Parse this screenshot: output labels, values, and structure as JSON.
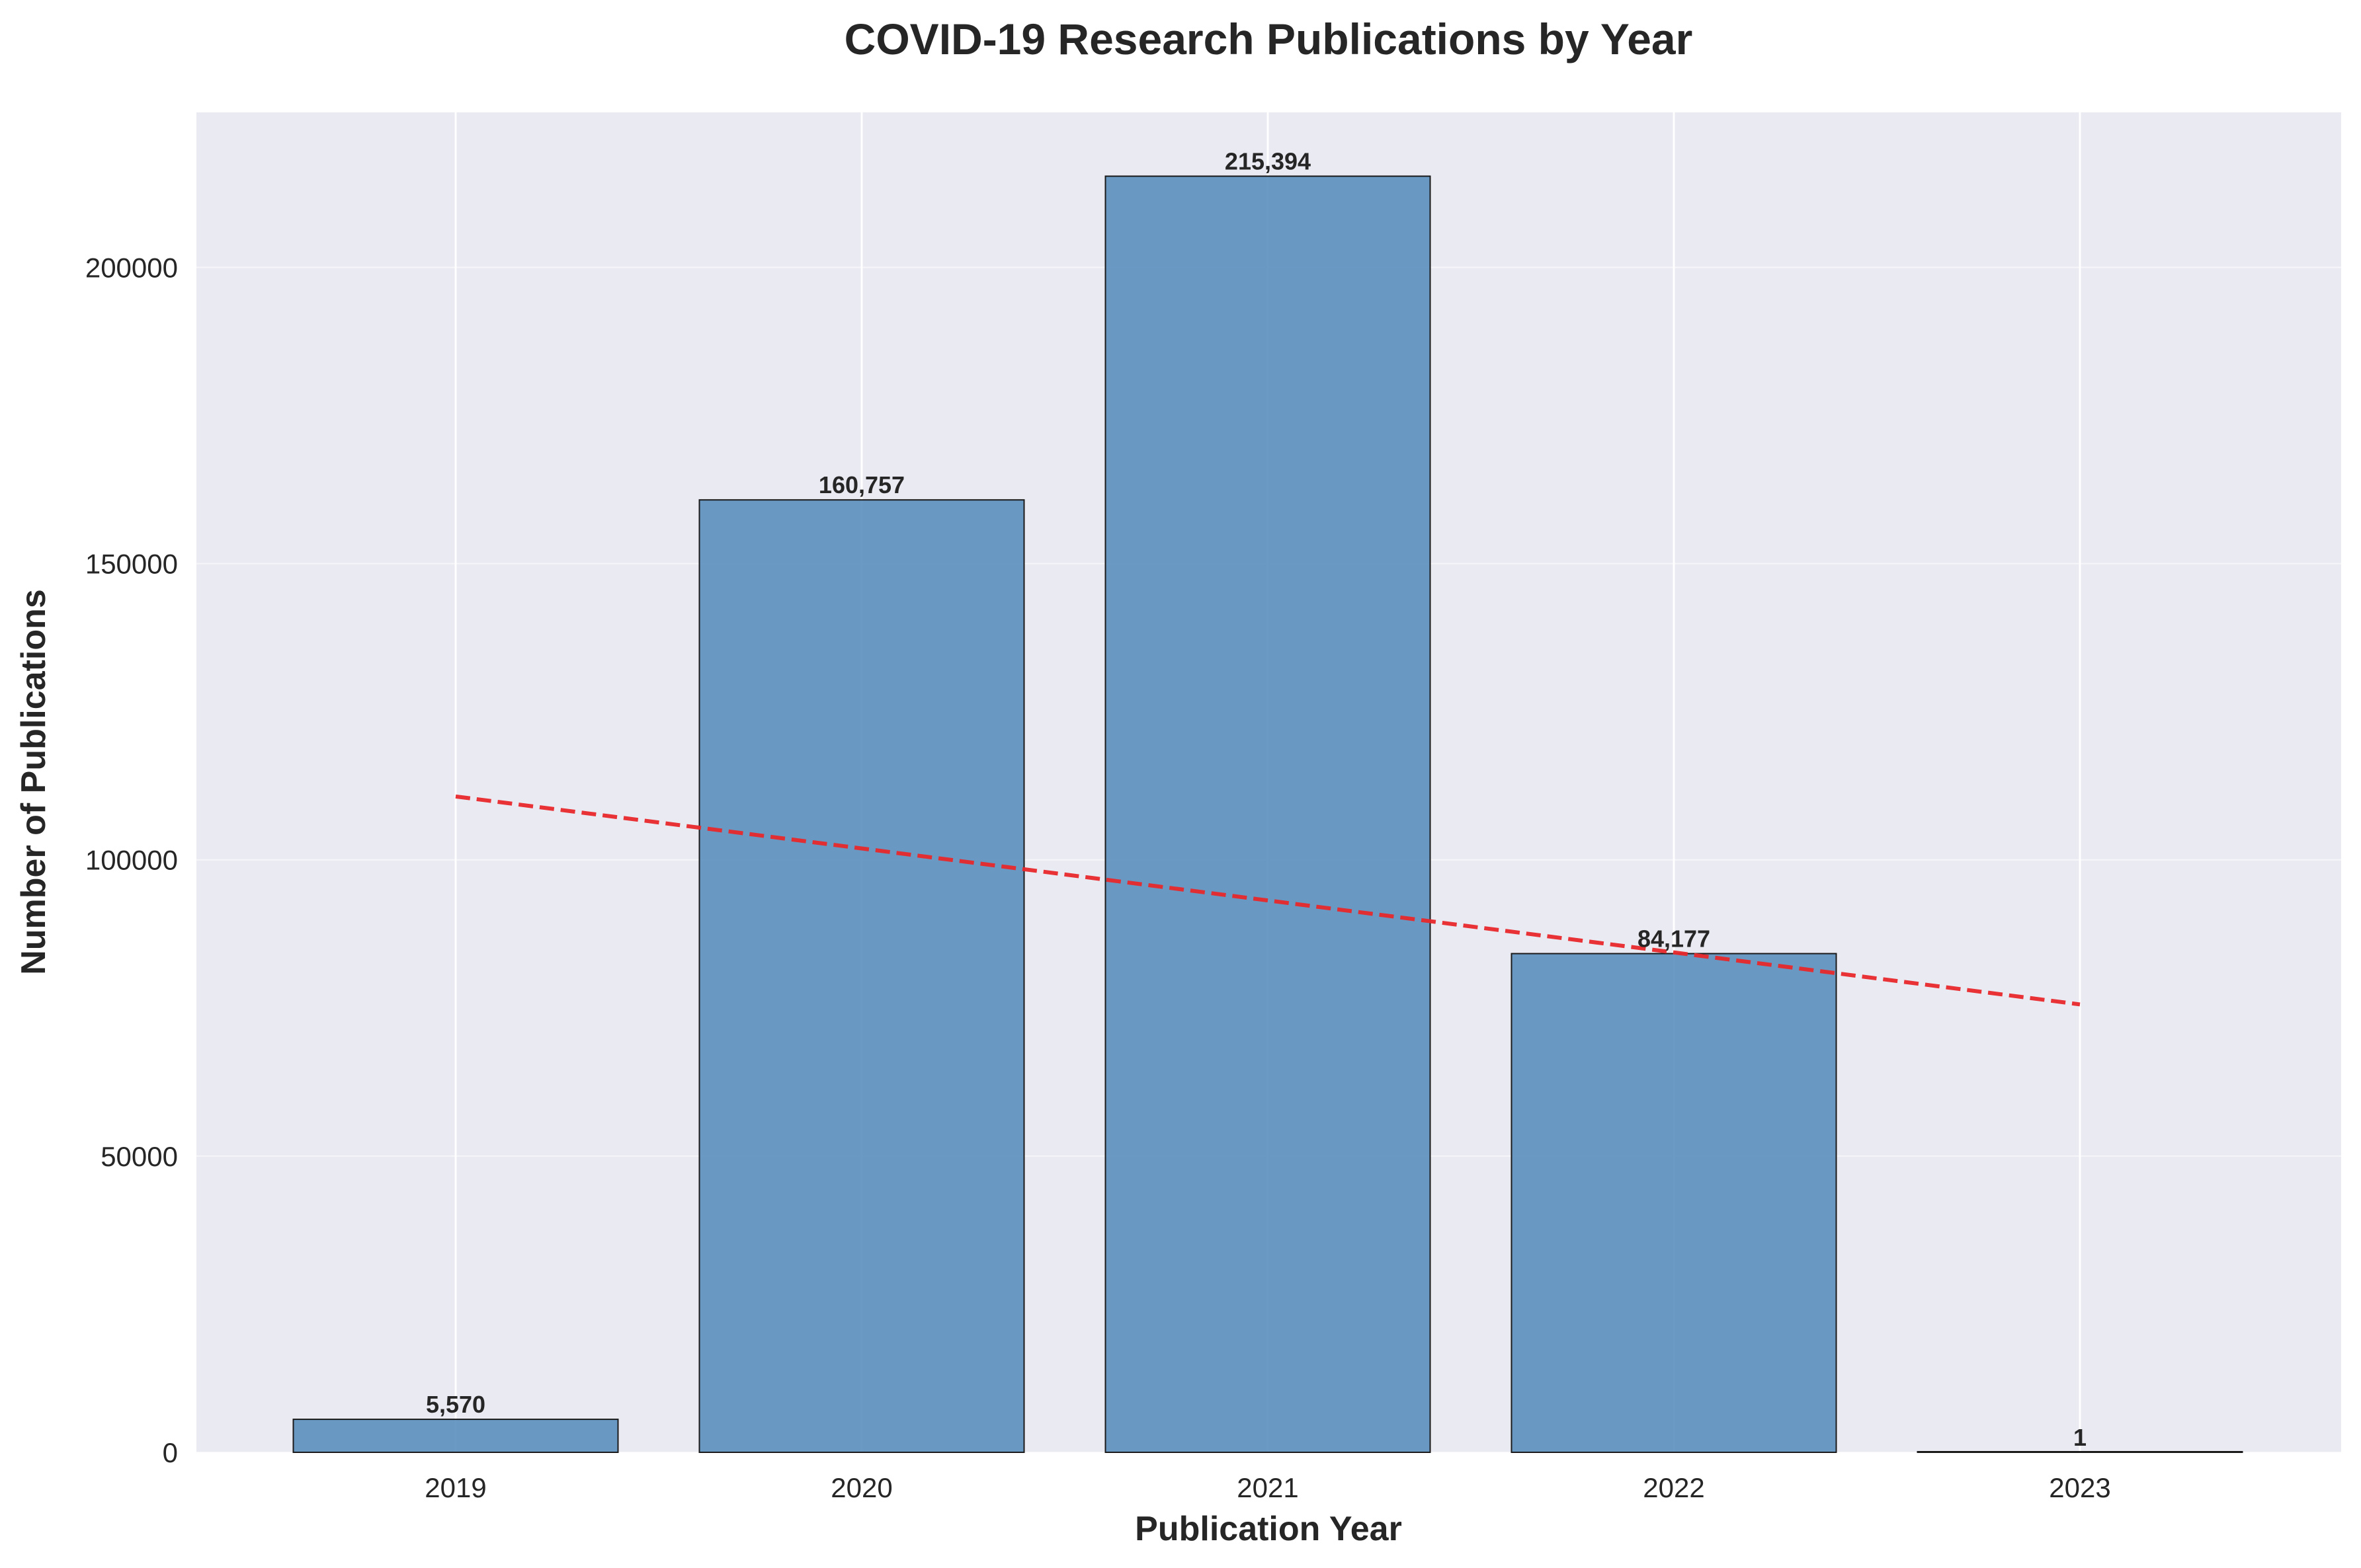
{
  "chart_data": {
    "type": "bar",
    "title": "COVID-19 Research Publications by Year",
    "xlabel": "Publication Year",
    "ylabel": "Number of Publications",
    "categories": [
      "2019",
      "2020",
      "2021",
      "2022",
      "2023"
    ],
    "values": [
      5570,
      160757,
      215394,
      84177,
      1
    ],
    "value_labels": [
      "5,570",
      "160,757",
      "215,394",
      "84,177",
      "1"
    ],
    "ylim": [
      0,
      226164
    ],
    "yticks": [
      0,
      50000,
      100000,
      150000,
      200000
    ],
    "ytick_labels": [
      "0",
      "50000",
      "100000",
      "150000",
      "200000"
    ],
    "trend_line": {
      "style": "dashed",
      "color": "#e8282b",
      "start": 110700,
      "end": 75600
    },
    "grid": true,
    "colors": {
      "bar": "#5b8fbe",
      "bar_edge": "#1a1a1a",
      "background": "#eaeaf2",
      "grid": "#ffffff"
    }
  }
}
